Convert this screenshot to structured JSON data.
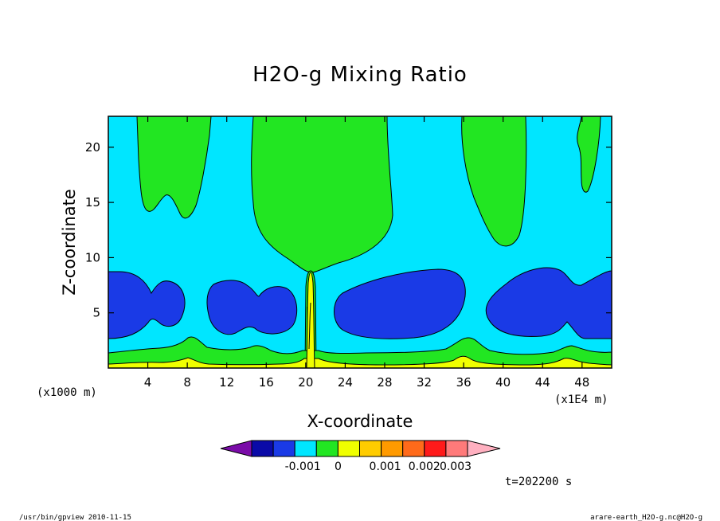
{
  "chart_data": {
    "type": "heatmap",
    "subtype": "filled-contour",
    "title": "H2O-g Mixing Ratio",
    "xlabel": "X-coordinate",
    "ylabel": "Z-coordinate",
    "x_unit_note": "(x1E4 m)",
    "y_unit_note": "(x1000 m)",
    "xlim": [
      0,
      51
    ],
    "ylim": [
      0,
      22.8
    ],
    "x_ticks": [
      4,
      8,
      12,
      16,
      20,
      24,
      28,
      32,
      36,
      40,
      44,
      48
    ],
    "y_ticks": [
      5,
      10,
      15,
      20
    ],
    "x_tick_labels": [
      "4",
      "8",
      "12",
      "16",
      "20",
      "24",
      "28",
      "32",
      "36",
      "40",
      "44",
      "48"
    ],
    "y_tick_labels": [
      "5",
      "10",
      "15",
      "20"
    ],
    "colorbar": {
      "colors": [
        "#7a0ca8",
        "#0a0aa8",
        "#1a3ae6",
        "#00e6ff",
        "#22e622",
        "#f0ff00",
        "#ffcc00",
        "#ff9a00",
        "#ff6a1a",
        "#ff1a1a",
        "#ff7a7a",
        "#ffb0c0"
      ],
      "tick_labels": [
        "-0.001",
        "0",
        "0.001",
        "0.002",
        "0.003"
      ]
    },
    "regions": [
      {
        "level": "cyan",
        "color": "#00e6ff",
        "role": "background"
      },
      {
        "level": "green",
        "color": "#22e622",
        "role": "upper plumes and near-surface band"
      },
      {
        "level": "blue",
        "color": "#1a3ae6",
        "role": "mid-level dry blobs (z about 2.5-9)"
      },
      {
        "level": "yellow",
        "color": "#f0ff00",
        "role": "surface layer and central updraft at x about 20.5"
      }
    ],
    "time_label": "t=202200 s"
  },
  "footer": {
    "left": "/usr/bin/gpview   2010-11-15",
    "right": "arare-earth_H2O-g.nc@H2O-g"
  }
}
